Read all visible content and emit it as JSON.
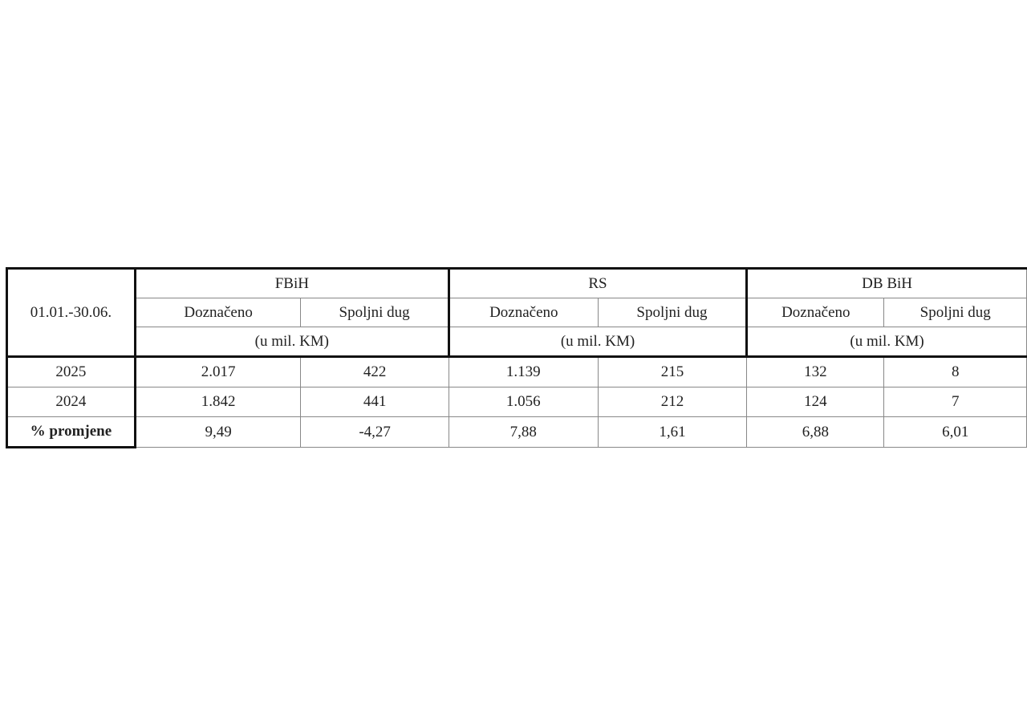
{
  "table": {
    "corner_label": "01.01.-30.06.",
    "groups": [
      {
        "name": "FBiH",
        "sub": [
          "Doznačeno",
          "Spoljni dug"
        ],
        "unit": "(u mil. KM)"
      },
      {
        "name": "RS",
        "sub": [
          "Doznačeno",
          "Spoljni dug"
        ],
        "unit": "(u mil. KM)"
      },
      {
        "name": "DB BiH",
        "sub": [
          "Doznačeno",
          "Spoljni dug"
        ],
        "unit": "(u mil. KM)"
      }
    ],
    "rows": [
      {
        "label": "2025",
        "values": [
          "2.017",
          "422",
          "1.139",
          "215",
          "132",
          "8"
        ]
      },
      {
        "label": "2024",
        "values": [
          "1.842",
          "441",
          "1.056",
          "212",
          "124",
          "7"
        ]
      },
      {
        "label": "% promjene",
        "values": [
          "9,49",
          "-4,27",
          "7,88",
          "1,61",
          "6,88",
          "6,01"
        ]
      }
    ]
  }
}
